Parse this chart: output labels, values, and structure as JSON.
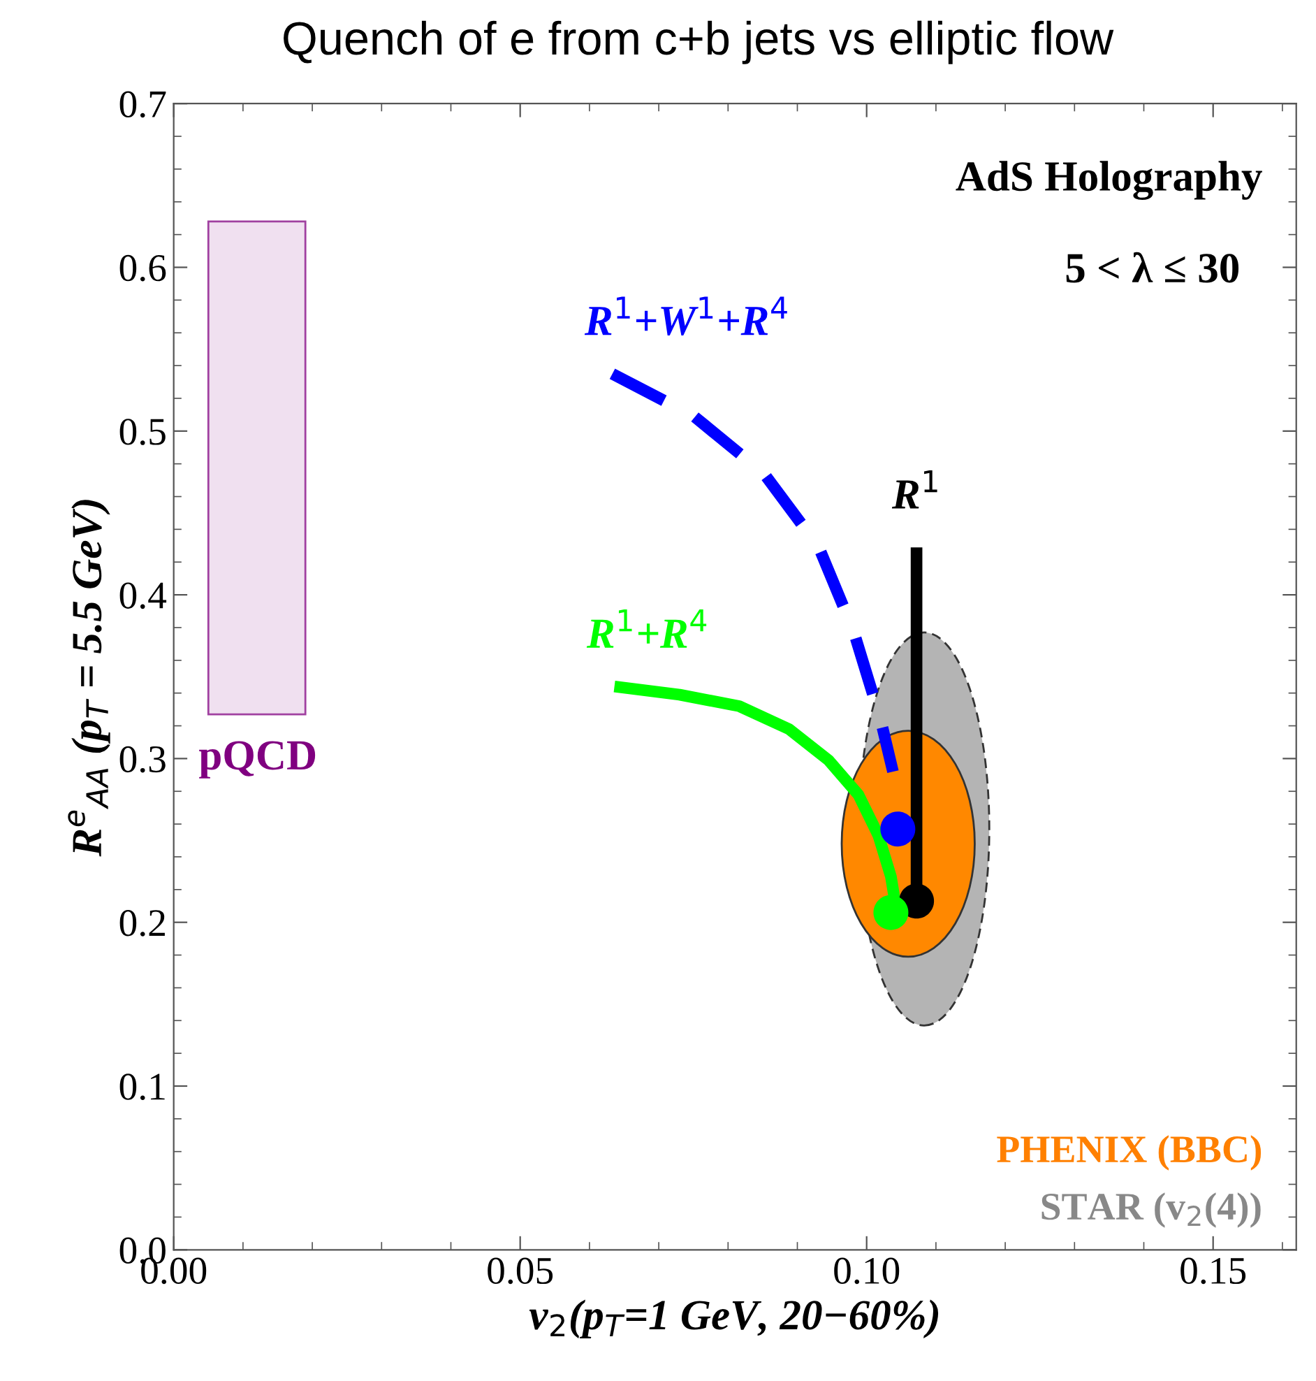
{
  "chart_data": {
    "type": "line",
    "title": "Quench of e from c+b jets vs elliptic flow",
    "xlabel": "v$_{2}$(p$_{T}$=1 GeV, 20−60%)",
    "ylabel": "R$^{e}$$_{AA}$ (p$_{T}$ = 5.5 GeV)",
    "xlim": [
      0,
      0.162
    ],
    "ylim": [
      0,
      0.7
    ],
    "xticks": [
      {
        "value": 0,
        "label": "0.00"
      },
      0.05,
      {
        "value": 0.1,
        "label": "0.10"
      },
      0.15
    ],
    "yticks": [
      {
        "value": 0,
        "label": "0.0"
      },
      0.1,
      0.2,
      0.3,
      0.4,
      0.5,
      0.6,
      0.7
    ],
    "grid": false,
    "annotations": [
      "AdS Holography",
      "5 < λ ≤ 30",
      "pQCD",
      "PHENIX (BBC)",
      "STAR (v$_{2}$(4))"
    ],
    "series": [
      {
        "name": "R$^{1}$+W$^{1}$+R$^{4}$",
        "color": "#0000ff",
        "line_style": "dashed",
        "x": [
          0.0633,
          0.0751,
          0.0852,
          0.0931,
          0.0981,
          0.102,
          0.1038
        ],
        "values": [
          0.535,
          0.509,
          0.474,
          0.429,
          0.378,
          0.324,
          0.292
        ]
      },
      {
        "name": "R$^{1}$+R$^{4}$",
        "color": "#00ff00",
        "line_style": "solid",
        "x": [
          0.0636,
          0.073,
          0.0816,
          0.0888,
          0.0945,
          0.0988,
          0.1017,
          0.1035,
          0.1042
        ],
        "values": [
          0.344,
          0.339,
          0.332,
          0.318,
          0.299,
          0.278,
          0.253,
          0.228,
          0.21
        ]
      },
      {
        "name": "R$^{1}$",
        "color": "#000000",
        "line_style": "solid",
        "x": [
          0.1072,
          0.1072
        ],
        "values": [
          0.429,
          0.213
        ]
      },
      {
        "type": "scatter",
        "marker": "circle",
        "color": "#0000ff",
        "x": [
          0.1045
        ],
        "values": [
          0.257
        ]
      },
      {
        "type": "scatter",
        "marker": "circle",
        "color": "#000000",
        "x": [
          0.1072
        ],
        "values": [
          0.213
        ]
      },
      {
        "type": "scatter",
        "marker": "circle",
        "color": "#00ff00",
        "x": [
          0.1035
        ],
        "values": [
          0.206
        ]
      }
    ]
  }
}
